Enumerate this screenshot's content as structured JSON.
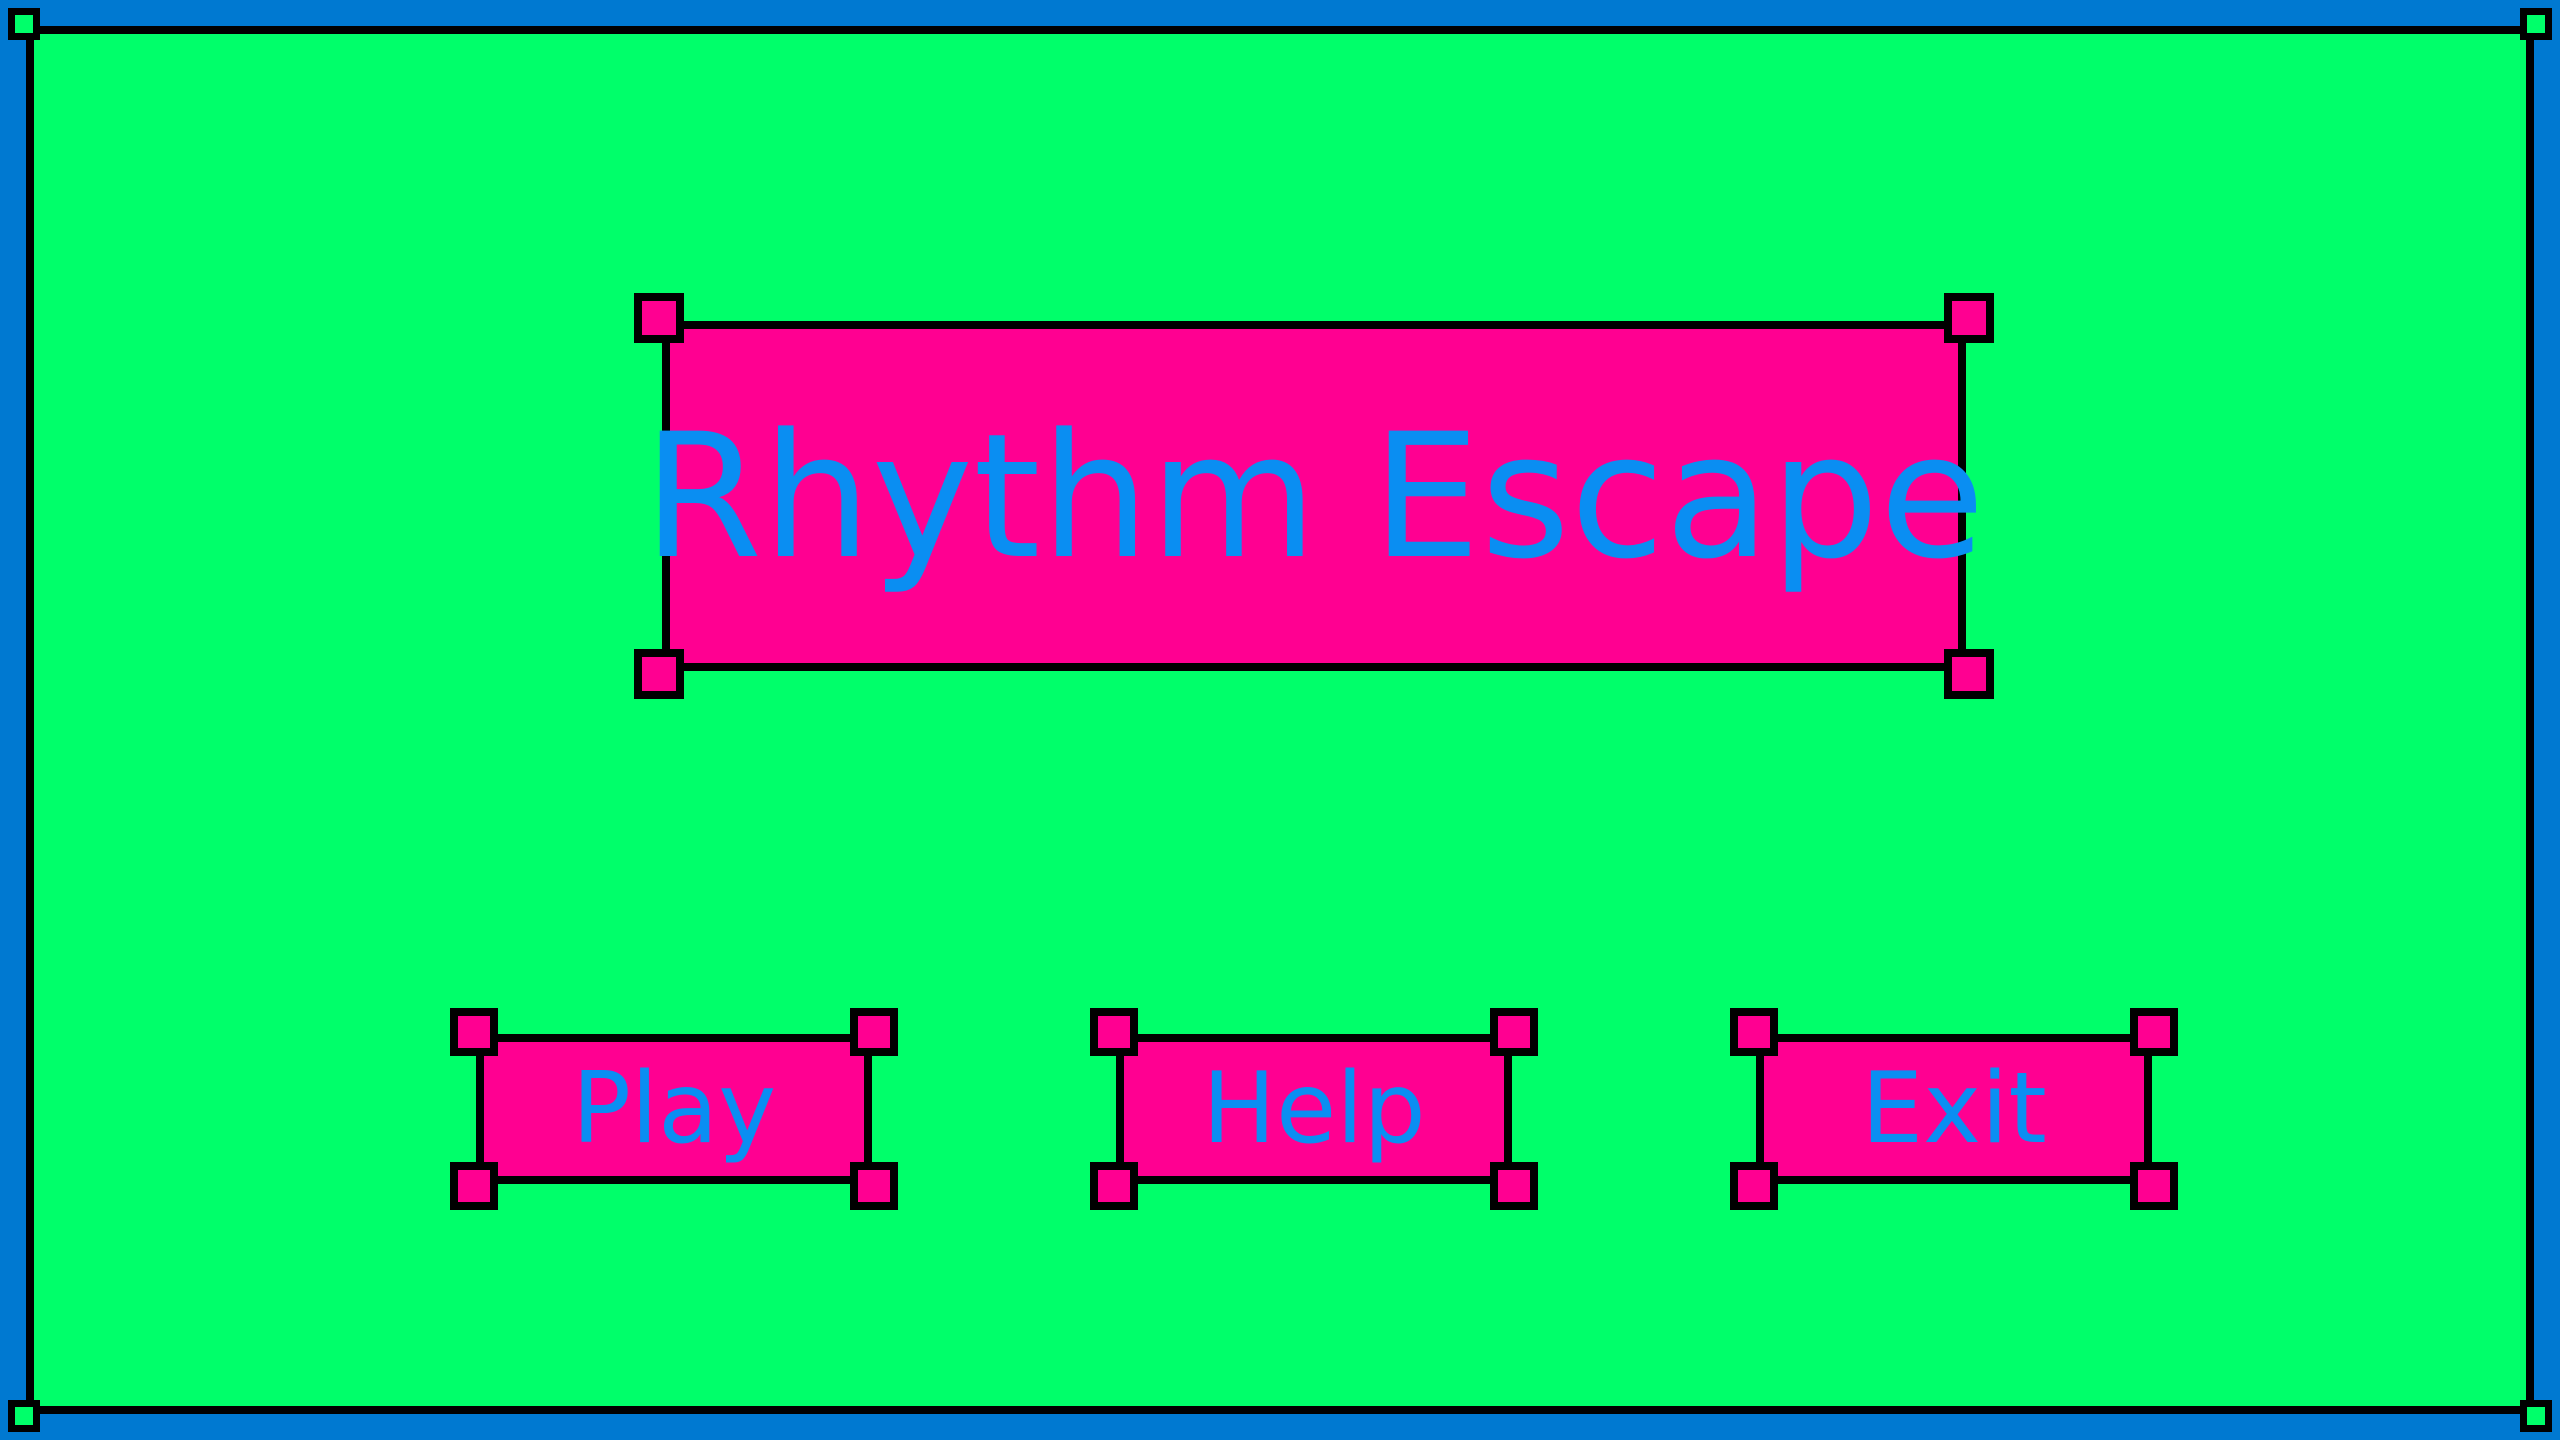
{
  "title": "Rhythm Escape",
  "menu": {
    "play_label": "Play",
    "help_label": "Help",
    "exit_label": "Exit"
  },
  "colors": {
    "background_green": "#00ff6a",
    "frame_blue": "#0079d1",
    "panel_pink": "#ff0091",
    "text_blue": "#0a8ef2",
    "outline": "#000000"
  }
}
